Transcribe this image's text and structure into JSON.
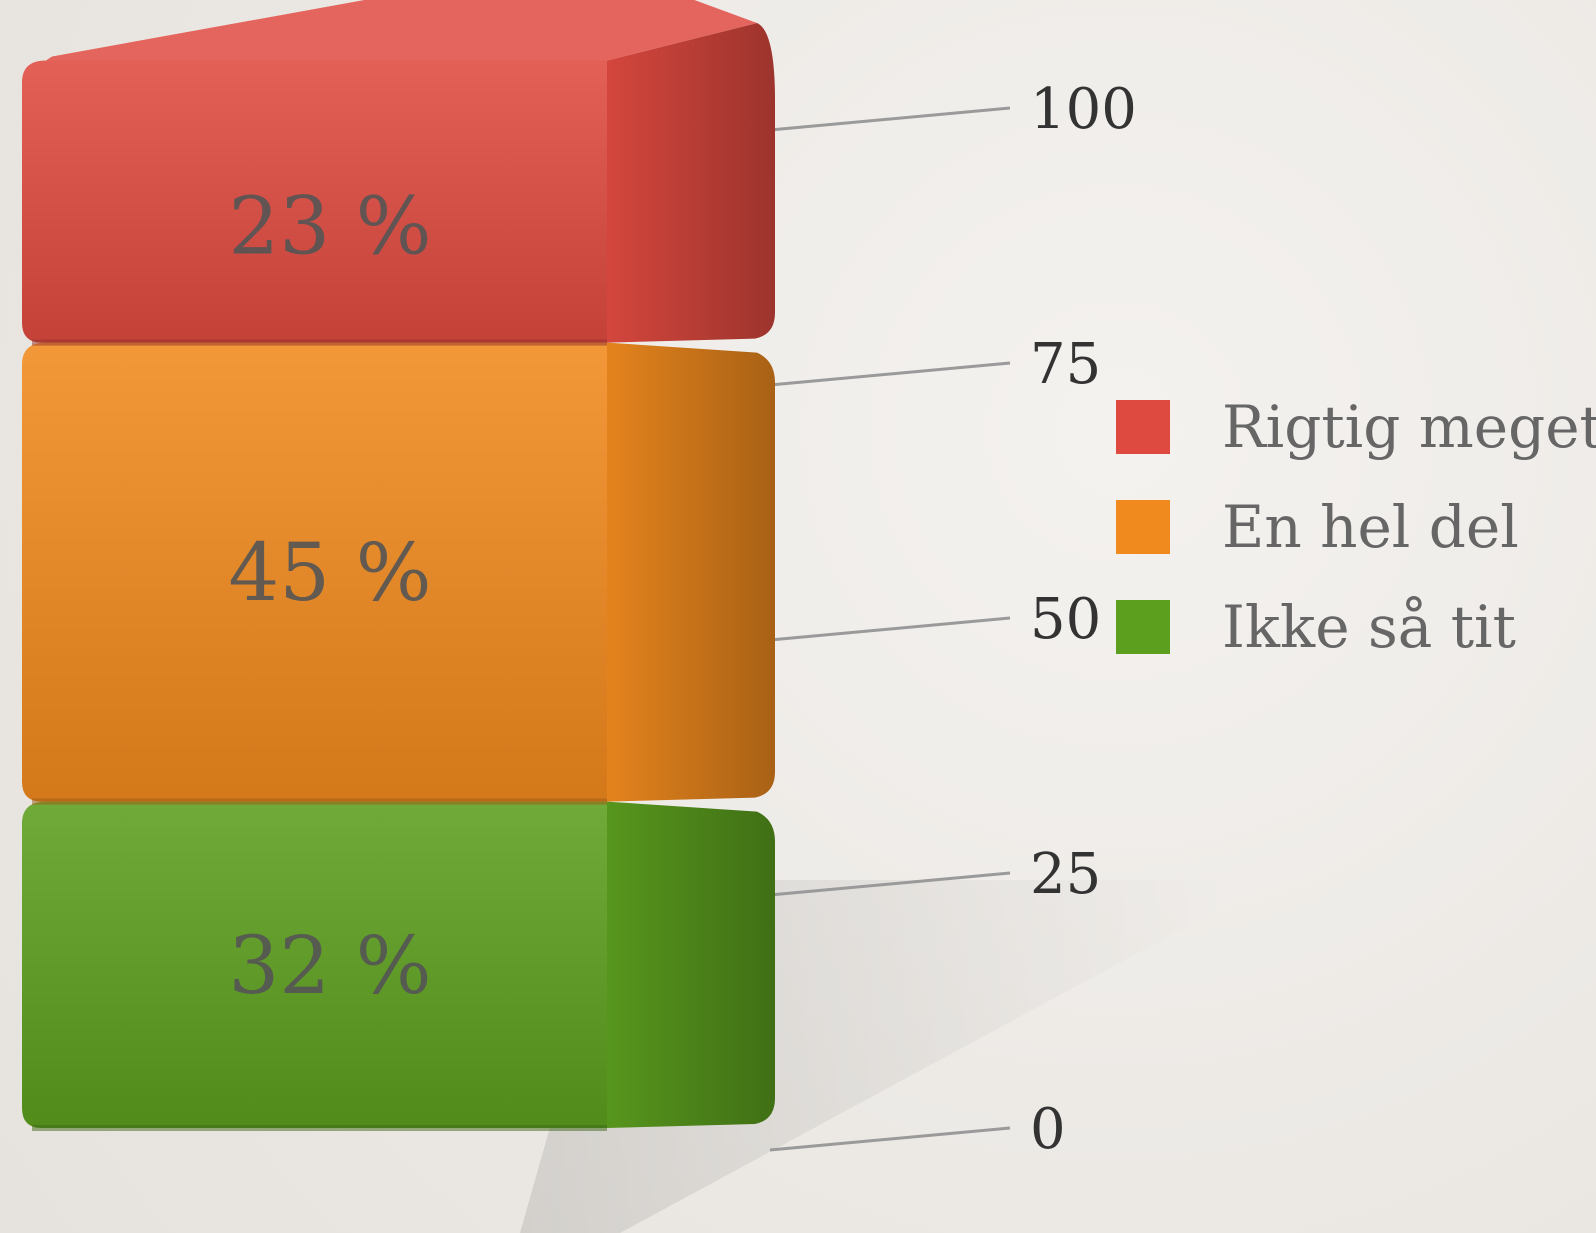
{
  "chart_data": {
    "type": "bar",
    "stacked": true,
    "categories": [
      ""
    ],
    "series": [
      {
        "name": "Ikke så tit",
        "values": [
          32
        ],
        "label": "32 %",
        "color": "#5c9e1e"
      },
      {
        "name": "En hel del",
        "values": [
          45
        ],
        "label": "45 %",
        "color": "#f08a1e"
      },
      {
        "name": "Rigtig meget",
        "values": [
          23
        ],
        "label": "23 %",
        "color": "#df4a40"
      }
    ],
    "legend_order": [
      "Rigtig meget",
      "En hel del",
      "Ikke så tit"
    ],
    "y_ticks": [
      "0",
      "25",
      "50",
      "75",
      "100"
    ],
    "ylim": [
      0,
      100
    ],
    "grid": false,
    "legend_placement": "right",
    "title": "",
    "xlabel": "",
    "ylabel": ""
  }
}
